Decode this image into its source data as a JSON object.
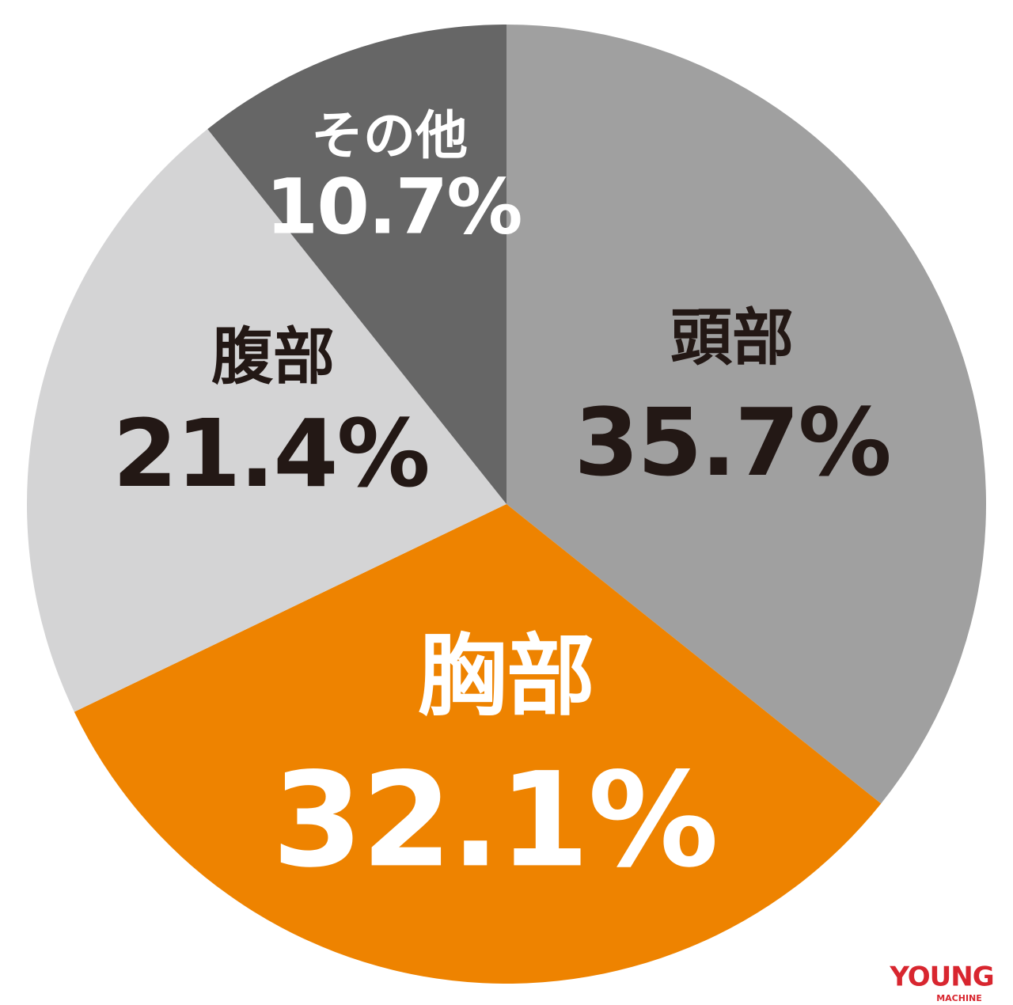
{
  "chart_data": {
    "type": "pie",
    "categories": [
      "頭部",
      "胸部",
      "腹部",
      "その他"
    ],
    "values": [
      35.7,
      32.1,
      21.4,
      10.7
    ],
    "value_labels": [
      "35.7%",
      "32.1%",
      "21.4%",
      "10.7%"
    ],
    "colors": [
      "#a0a0a0",
      "#ee8300",
      "#d4d4d5",
      "#666666"
    ],
    "label_colors": [
      "#231815",
      "#ffffff",
      "#231815",
      "#ffffff"
    ]
  },
  "logo": {
    "title": "YOUNG",
    "subtitle": "MACHINE"
  }
}
